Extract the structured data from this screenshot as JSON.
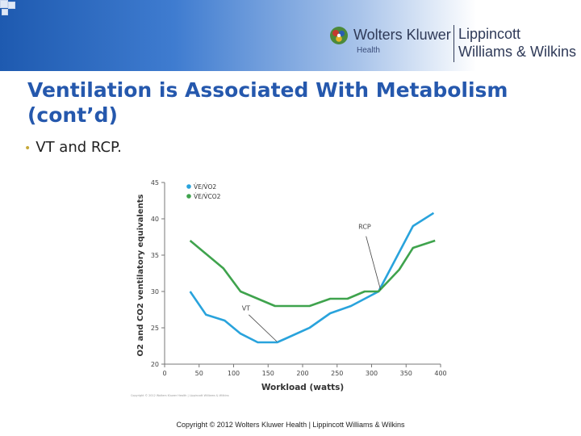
{
  "header": {
    "brand_name": "Wolters Kluwer",
    "brand_sub": "Health",
    "publisher_line1": "Lippincott",
    "publisher_line2": "Williams & Wilkins"
  },
  "slide": {
    "title": "Ventilation is Associated With Metabolism (cont’d)",
    "bullet": "VT and RCP."
  },
  "chart_data": {
    "type": "line",
    "title": "",
    "xlabel": "Workload (watts)",
    "ylabel": "O2 and CO2 ventilatory equivalents",
    "xlim": [
      0,
      400
    ],
    "ylim": [
      20,
      45
    ],
    "xticks": [
      0,
      50,
      100,
      150,
      200,
      250,
      300,
      350,
      400
    ],
    "yticks": [
      20,
      25,
      30,
      35,
      40,
      45
    ],
    "grid": false,
    "legend_position": "top-left",
    "series": [
      {
        "name": "V̇E/V̇O2",
        "color": "#29a3dc",
        "points": [
          [
            37,
            30
          ],
          [
            60,
            26.8
          ],
          [
            87,
            26
          ],
          [
            110,
            24.2
          ],
          [
            135,
            23
          ],
          [
            163,
            23
          ],
          [
            175,
            23.5
          ],
          [
            210,
            25
          ],
          [
            240,
            27
          ],
          [
            270,
            28
          ],
          [
            310,
            30
          ],
          [
            360,
            39
          ],
          [
            390,
            40.8
          ]
        ]
      },
      {
        "name": "V̇E/V̇CO2",
        "color": "#3fa34d",
        "points": [
          [
            37,
            37
          ],
          [
            85,
            33.2
          ],
          [
            110,
            30
          ],
          [
            160,
            28
          ],
          [
            210,
            28
          ],
          [
            240,
            29
          ],
          [
            265,
            29
          ],
          [
            290,
            30
          ],
          [
            310,
            30
          ],
          [
            340,
            33
          ],
          [
            360,
            36
          ],
          [
            392,
            37
          ]
        ]
      }
    ],
    "annotations": [
      {
        "label": "VT",
        "at": [
          165,
          23
        ]
      },
      {
        "label": "RCP",
        "at": [
          313,
          30
        ]
      }
    ],
    "source_note": "Copyright © 2012 Wolters Kluwer Health | Lippincott Williams & Wilkins"
  },
  "footer": {
    "copyright": "Copyright © 2012 Wolters Kluwer Health | Lippincott Williams & Wilkins"
  },
  "colors": {
    "title": "#2558ad",
    "bullet": "#c6a93a",
    "banner_start": "#1e5ab0"
  }
}
